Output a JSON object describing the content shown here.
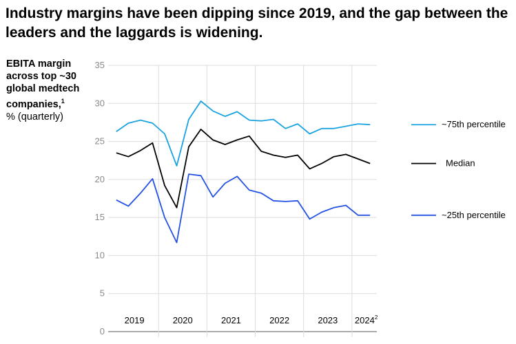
{
  "chart_data": {
    "type": "line",
    "title": "Industry margins have been dipping since 2019, and the gap between the leaders and the laggards is widening.",
    "ylabel_bold": "EBITA margin across top ~30 global medtech companies,",
    "ylabel_footnote": "1",
    "ylabel_unit": "% (quarterly)",
    "ylim": [
      0,
      35
    ],
    "yticks": [
      0,
      5,
      10,
      15,
      20,
      25,
      30,
      35
    ],
    "year_labels": [
      "2019",
      "2020",
      "2021",
      "2022",
      "2023",
      "2024"
    ],
    "last_year_footnote": "2",
    "x_quarters": 22,
    "series": [
      {
        "name": "~75th percentile",
        "color": "#1aa3e0",
        "values": [
          26.3,
          27.4,
          27.8,
          27.4,
          26.0,
          21.8,
          27.9,
          30.3,
          29.0,
          28.3,
          28.9,
          27.8,
          27.7,
          27.9,
          26.7,
          27.3,
          26.0,
          26.7,
          26.7,
          27.0,
          27.3,
          27.2
        ]
      },
      {
        "name": "Median",
        "color": "#000000",
        "values": [
          23.5,
          23.0,
          23.8,
          24.8,
          19.2,
          16.3,
          24.3,
          26.6,
          25.2,
          24.6,
          25.2,
          25.7,
          23.7,
          23.2,
          22.9,
          23.2,
          21.4,
          22.1,
          23.0,
          23.3,
          22.7,
          22.1
        ]
      },
      {
        "name": "~25th percentile",
        "color": "#2351e3",
        "values": [
          17.3,
          16.5,
          18.2,
          20.1,
          15.0,
          11.7,
          20.7,
          20.5,
          17.7,
          19.5,
          20.4,
          18.6,
          18.2,
          17.2,
          17.1,
          17.2,
          14.8,
          15.7,
          16.3,
          16.6,
          15.3,
          15.3
        ]
      }
    ]
  }
}
